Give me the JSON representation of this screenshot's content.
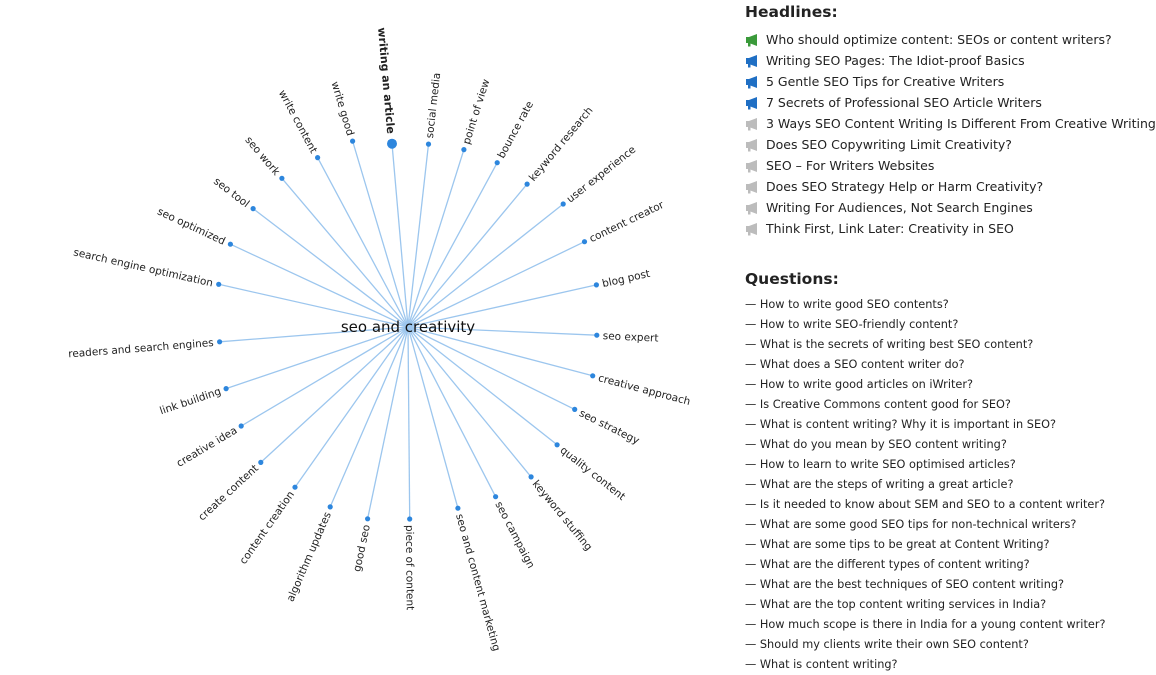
{
  "mindmap": {
    "center": "seo and creativity",
    "selected": "writing an article",
    "nodes": [
      {
        "label": "writing an article",
        "angle": -95,
        "len": 184,
        "selected": true
      },
      {
        "label": "social media",
        "angle": -83.6,
        "len": 184
      },
      {
        "label": "point of view",
        "angle": -72.5,
        "len": 186
      },
      {
        "label": "bounce rate",
        "angle": -61.5,
        "len": 187
      },
      {
        "label": "keyword research",
        "angle": -50.2,
        "len": 186
      },
      {
        "label": "user experience",
        "angle": -38.4,
        "len": 198
      },
      {
        "label": "content creator",
        "angle": -25.8,
        "len": 196
      },
      {
        "label": "blog post",
        "angle": -12.6,
        "len": 193
      },
      {
        "label": "seo expert",
        "angle": 2.5,
        "len": 189
      },
      {
        "label": "creative approach",
        "angle": 14.8,
        "len": 191
      },
      {
        "label": "seo strategy",
        "angle": 26.3,
        "len": 186
      },
      {
        "label": "quality content",
        "angle": 38.3,
        "len": 190
      },
      {
        "label": "keyword stuffing",
        "angle": 50.6,
        "len": 194
      },
      {
        "label": "seo campaign",
        "angle": 62.7,
        "len": 191
      },
      {
        "label": "seo and content marketing",
        "angle": 74.6,
        "len": 188
      },
      {
        "label": "piece of content",
        "angle": 89.5,
        "len": 192
      },
      {
        "label": "good seo",
        "angle": 101.9,
        "len": 196
      },
      {
        "label": "algorithm updates",
        "angle": 113.4,
        "len": 196
      },
      {
        "label": "content creation",
        "angle": 125.2,
        "len": 196
      },
      {
        "label": "create content",
        "angle": 137.4,
        "len": 200
      },
      {
        "label": "creative idea",
        "angle": 149.3,
        "len": 194
      },
      {
        "label": "link building",
        "angle": 161.3,
        "len": 192
      },
      {
        "label": "readers and search engines",
        "angle": 175.5,
        "len": 189
      },
      {
        "label": "search engine optimization",
        "angle": -167.3,
        "len": 194
      },
      {
        "label": "seo optimized",
        "angle": -155,
        "len": 196
      },
      {
        "label": "seo tool",
        "angle": -142.6,
        "len": 195
      },
      {
        "label": "seo work",
        "angle": -130.3,
        "len": 195
      },
      {
        "label": "write content",
        "angle": -118.1,
        "len": 192
      },
      {
        "label": "write good",
        "angle": -106.6,
        "len": 194
      }
    ]
  },
  "headlines": {
    "title": "Headlines:",
    "items": [
      {
        "text": "Who should optimize content: SEOs or content writers?",
        "icon": "megaphone-green-icon",
        "color": "#3a9a3a",
        "level": 1
      },
      {
        "text": "Writing SEO Pages: The Idiot-proof Basics",
        "icon": "megaphone-blue-icon",
        "color": "#1f6fc4",
        "level": 0.6
      },
      {
        "text": "5 Gentle SEO Tips for Creative Writers",
        "icon": "megaphone-blue-icon",
        "color": "#1f6fc4",
        "level": 0.6
      },
      {
        "text": "7 Secrets of Professional SEO Article Writers",
        "icon": "megaphone-blue-icon",
        "color": "#1f6fc4",
        "level": 0.6
      },
      {
        "text": "3 Ways SEO Content Writing Is Different From Creative Writing",
        "icon": "megaphone-gray-icon",
        "color": "#bcbcbc",
        "level": 0
      },
      {
        "text": "Does SEO Copywriting Limit Creativity?",
        "icon": "megaphone-gray-icon",
        "color": "#bcbcbc",
        "level": 0
      },
      {
        "text": "SEO – For Writers Websites",
        "icon": "megaphone-gray-icon",
        "color": "#bcbcbc",
        "level": 0
      },
      {
        "text": "Does SEO Strategy Help or Harm Creativity?",
        "icon": "megaphone-gray-icon",
        "color": "#bcbcbc",
        "level": 0
      },
      {
        "text": "Writing For Audiences, Not Search Engines",
        "icon": "megaphone-gray-icon",
        "color": "#bcbcbc",
        "level": 0
      },
      {
        "text": "Think First, Link Later: Creativity in SEO",
        "icon": "megaphone-gray-icon",
        "color": "#bcbcbc",
        "level": 0
      }
    ]
  },
  "questions": {
    "title": "Questions:",
    "items": [
      "— How to write good SEO contents?",
      "— How to write SEO-friendly content?",
      "— What is the secrets of writing best SEO content?",
      "— What does a SEO content writer do?",
      "— How to write good articles on iWriter?",
      "— Is Creative Commons content good for SEO?",
      "— What is content writing? Why it is important in SEO?",
      "— What do you mean by SEO content writing?",
      "— How to learn to write SEO optimised articles?",
      "— What are the steps of writing a great article?",
      "— Is it needed to know about SEM and SEO to a content writer?",
      "— What are some good SEO tips for non-technical writers?",
      "— What are some tips to be great at Content Writing?",
      "— What are the different types of content writing?",
      "— What are the best techniques of SEO content writing?",
      "— What are the top content writing services in India?",
      "— How much scope is there in India for a young content writer?",
      "— Should my clients write their own SEO content?",
      "— What is content writing?"
    ]
  }
}
